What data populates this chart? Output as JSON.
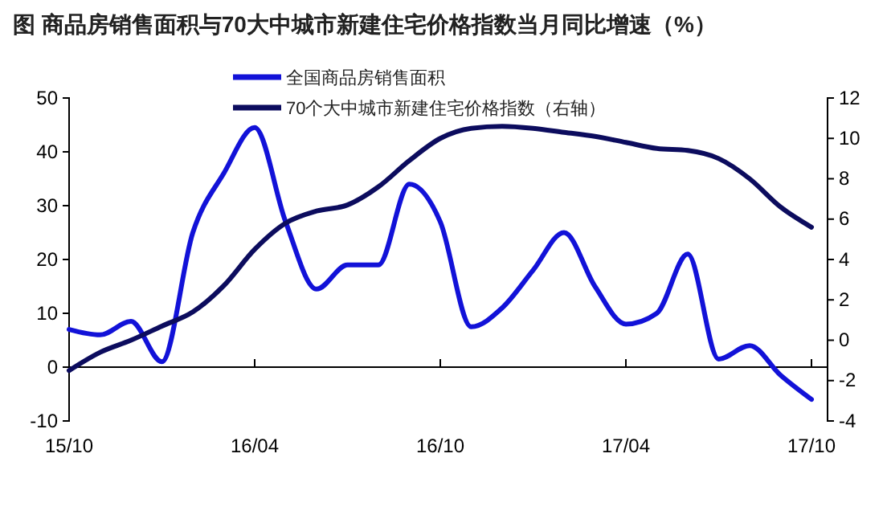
{
  "chart_data": {
    "type": "line",
    "title": "图    商品房销售面积与70大中城市新建住宅价格指数当月同比增速（%）",
    "categories": [
      "15/10",
      null,
      null,
      null,
      null,
      null,
      "16/04",
      null,
      null,
      null,
      null,
      null,
      "16/10",
      null,
      null,
      null,
      null,
      null,
      "17/04",
      null,
      null,
      null,
      null,
      null,
      "17/10"
    ],
    "ylim": [
      -10,
      50
    ],
    "yticks": [
      -10,
      0,
      10,
      20,
      30,
      40,
      50
    ],
    "y2lim": [
      -4,
      12
    ],
    "y2ticks": [
      -4,
      -2,
      0,
      2,
      4,
      6,
      8,
      10,
      12
    ],
    "legend": "top",
    "marker": "none",
    "line_style": "solid",
    "series": [
      {
        "name": "全国商品房销售面积",
        "color": "#1212d8",
        "values": [
          7,
          6,
          8.5,
          1,
          25,
          36,
          44.5,
          27,
          14.5,
          19,
          19,
          34,
          27,
          7.5,
          11,
          18,
          25,
          15,
          8,
          10,
          21,
          1.5,
          4,
          -1.5,
          -6
        ]
      },
      {
        "name": "70个大中城市新建住宅价格指数（右轴）",
        "color": "#0c0c5e",
        "axis": "y2",
        "values": [
          -1.5,
          -0.6,
          0,
          0.7,
          1.4,
          2.7,
          4.5,
          5.8,
          6.4,
          6.7,
          7.6,
          8.9,
          10,
          10.5,
          10.6,
          10.5,
          10.3,
          10.1,
          9.8,
          9.5,
          9.4,
          9,
          8,
          6.6,
          5.6
        ]
      }
    ]
  }
}
